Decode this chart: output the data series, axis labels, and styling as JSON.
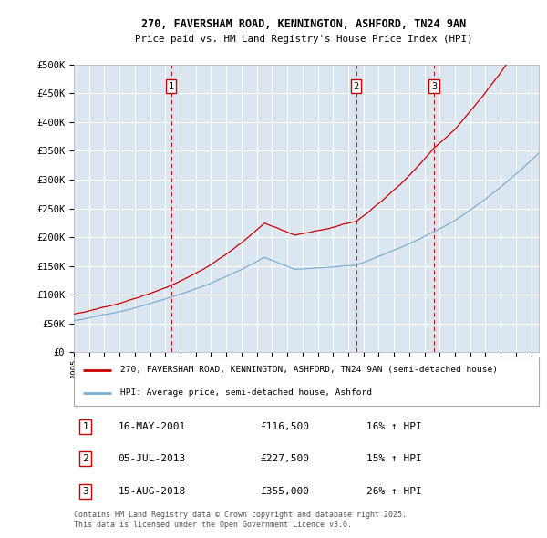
{
  "title1": "270, FAVERSHAM ROAD, KENNINGTON, ASHFORD, TN24 9AN",
  "title2": "Price paid vs. HM Land Registry's House Price Index (HPI)",
  "ylabel_ticks": [
    "£0",
    "£50K",
    "£100K",
    "£150K",
    "£200K",
    "£250K",
    "£300K",
    "£350K",
    "£400K",
    "£450K",
    "£500K"
  ],
  "ylim": [
    0,
    500000
  ],
  "xlim_start": 1995.0,
  "xlim_end": 2025.5,
  "price_color": "#cc0000",
  "hpi_color": "#7bafd4",
  "bg_color": "#dce6f1",
  "grid_color": "#ffffff",
  "sale_points": [
    {
      "year": 2001.37,
      "price": 116500,
      "label": "1"
    },
    {
      "year": 2013.51,
      "price": 227500,
      "label": "2"
    },
    {
      "year": 2018.62,
      "price": 355000,
      "label": "3"
    }
  ],
  "legend_price_label": "270, FAVERSHAM ROAD, KENNINGTON, ASHFORD, TN24 9AN (semi-detached house)",
  "legend_hpi_label": "HPI: Average price, semi-detached house, Ashford",
  "table_rows": [
    {
      "num": "1",
      "date": "16-MAY-2001",
      "price": "£116,500",
      "change": "16% ↑ HPI"
    },
    {
      "num": "2",
      "date": "05-JUL-2013",
      "price": "£227,500",
      "change": "15% ↑ HPI"
    },
    {
      "num": "3",
      "date": "15-AUG-2018",
      "price": "£355,000",
      "change": "26% ↑ HPI"
    }
  ],
  "footer": "Contains HM Land Registry data © Crown copyright and database right 2025.\nThis data is licensed under the Open Government Licence v3.0."
}
